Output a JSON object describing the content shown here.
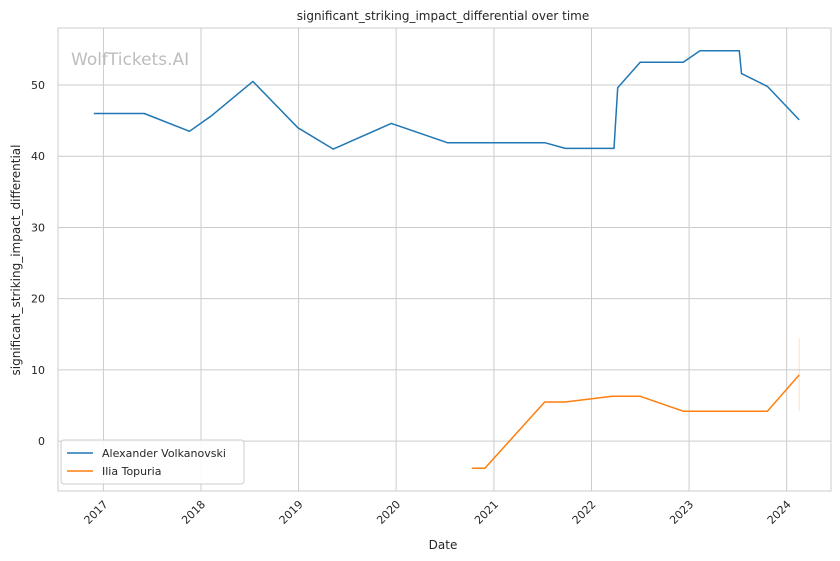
{
  "chart_data": {
    "type": "line",
    "title": "significant_striking_impact_differential over time",
    "xlabel": "Date",
    "ylabel": "significant_striking_impact_differential",
    "watermark": "WolfTickets.AI",
    "x_ticks": [
      "2017",
      "2018",
      "2019",
      "2020",
      "2021",
      "2022",
      "2023",
      "2024"
    ],
    "y_ticks": [
      "0",
      "10",
      "20",
      "30",
      "40",
      "50"
    ],
    "xlim": [
      "2016-07-15",
      "2024-06-15"
    ],
    "ylim": [
      -7,
      58
    ],
    "grid": true,
    "legend_position": "lower-left",
    "series": [
      {
        "name": "Alexander Volkanovski",
        "color": "#1f77b4",
        "points": [
          [
            "2016-11-26",
            46.0
          ],
          [
            "2017-06-03",
            46.0
          ],
          [
            "2017-11-19",
            43.5
          ],
          [
            "2018-02-10",
            45.7
          ],
          [
            "2018-07-14",
            50.5
          ],
          [
            "2018-12-29",
            44.0
          ],
          [
            "2019-05-11",
            41.0
          ],
          [
            "2019-12-14",
            44.6
          ],
          [
            "2020-07-11",
            41.9
          ],
          [
            "2021-07-10",
            41.9
          ],
          [
            "2021-09-25",
            41.1
          ],
          [
            "2022-03-26",
            41.1
          ],
          [
            "2022-04-09",
            49.6
          ],
          [
            "2022-07-02",
            53.2
          ],
          [
            "2022-12-10",
            53.2
          ],
          [
            "2023-02-11",
            54.8
          ],
          [
            "2023-07-08",
            54.8
          ],
          [
            "2023-07-16",
            51.6
          ],
          [
            "2023-10-21",
            49.8
          ],
          [
            "2024-02-17",
            45.1
          ]
        ]
      },
      {
        "name": "Ilia Topuria",
        "color": "#ff7f0e",
        "points": [
          [
            "2020-10-10",
            -3.8
          ],
          [
            "2020-11-28",
            -3.8
          ],
          [
            "2021-07-10",
            5.5
          ],
          [
            "2021-09-25",
            5.5
          ],
          [
            "2022-03-19",
            6.3
          ],
          [
            "2022-07-02",
            6.3
          ],
          [
            "2022-12-10",
            4.2
          ],
          [
            "2023-06-24",
            4.2
          ],
          [
            "2023-10-21",
            4.2
          ],
          [
            "2024-02-17",
            9.3
          ]
        ],
        "error_band": {
          "date": "2024-02-17",
          "low": 4.2,
          "high": 14.5
        }
      }
    ]
  }
}
